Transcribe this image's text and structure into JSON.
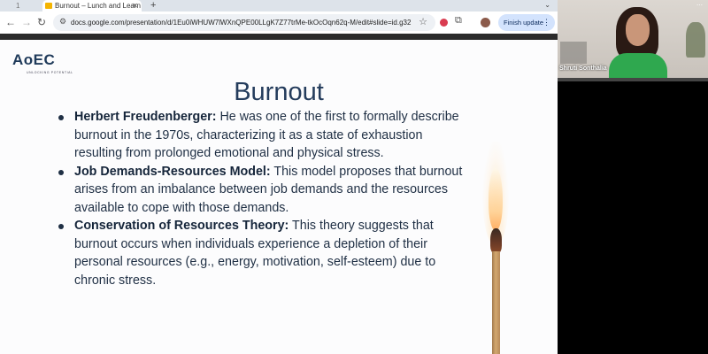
{
  "browser": {
    "tabs": [
      {
        "label": "1",
        "active": false
      },
      {
        "label": "Burnout – Lunch and Learn - ",
        "active": true
      }
    ],
    "new_tab_icon": "plus-icon",
    "tab_menu_icon": "chevron-down-icon",
    "url": "docs.google.com/presentation/d/1Eu0iWHUW7lWXnQPE00LLgK7Z77trMe-tkOcOqn62q-M/edit#slide=id.g32...",
    "finish_update_label": "Finish update",
    "icons": {
      "back": "arrow-left-icon",
      "forward": "arrow-right-icon",
      "reload": "reload-icon",
      "site_info": "tune-icon",
      "bookmark": "star-icon",
      "extensions": "puzzle-icon"
    }
  },
  "slide": {
    "logo_text": "AoEC",
    "logo_tagline": "UNLOCKING POTENTIAL",
    "title": "Burnout",
    "bullets": [
      {
        "term": "Herbert Freudenberger:",
        "text": " He was one of the first to formally describe burnout in the 1970s, characterizing it as a state of exhaustion resulting from prolonged emotional and physical stress."
      },
      {
        "term": "Job Demands-Resources Model:",
        "text": " This model proposes that burnout arises from an imbalance between job demands and the resources available to cope with those demands."
      },
      {
        "term": "Conservation of Resources Theory:",
        "text": " This theory suggests that burnout occurs when individuals experience a depletion of their personal resources (e.g., energy, motivation, self-esteem) due to chronic stress."
      }
    ]
  },
  "video": {
    "participant_name": "Shruti Sonthalia",
    "accent_shirt_color": "#2fa84f"
  },
  "colors": {
    "slide_text": "#1f2f44",
    "title": "#243c5c",
    "update_button": "#d3e3fd"
  }
}
